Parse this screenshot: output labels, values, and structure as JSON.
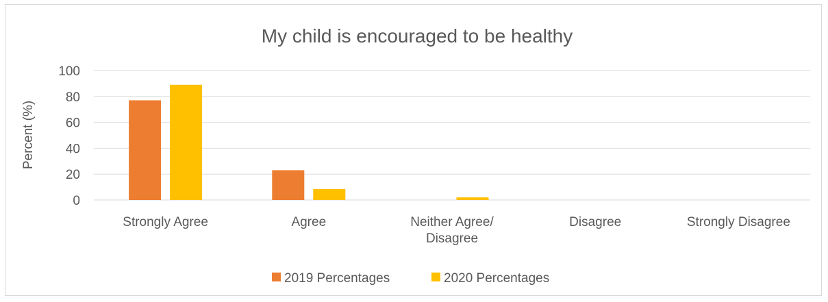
{
  "chart_data": {
    "type": "bar",
    "title": "My child is encouraged to be healthy",
    "xlabel": "",
    "ylabel": "Percent (%)",
    "ylim": [
      0,
      100
    ],
    "yticks": [
      0,
      20,
      40,
      60,
      80,
      100
    ],
    "categories": [
      [
        "Strongly Agree"
      ],
      [
        "Agree"
      ],
      [
        "Neither Agree/",
        "Disagree"
      ],
      [
        "Disagree"
      ],
      [
        "Strongly Disagree"
      ]
    ],
    "series": [
      {
        "name": "2019 Percentages",
        "color": "#ED7D31",
        "values": [
          77,
          23,
          0,
          0,
          0
        ]
      },
      {
        "name": "2020 Percentages",
        "color": "#FFC000",
        "values": [
          89,
          8.5,
          2,
          0,
          0
        ]
      }
    ],
    "grid": true,
    "legend_position": "bottom"
  }
}
